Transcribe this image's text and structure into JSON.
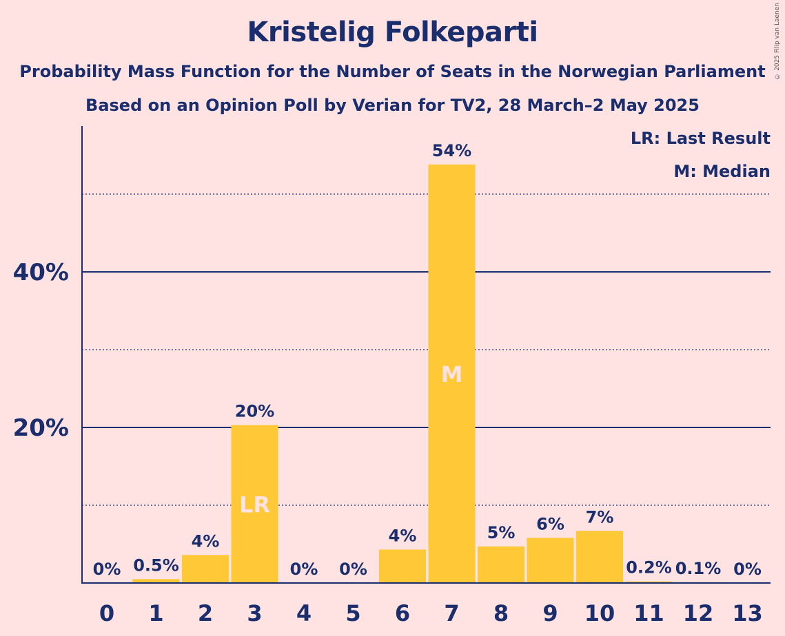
{
  "title": "Kristelig Folkeparti",
  "subtitle1": "Probability Mass Function for the Number of Seats in the Norwegian Parliament",
  "subtitle2": "Based on an Opinion Poll by Verian for TV2, 28 March–2 May 2025",
  "copyright": "© 2025 Filip van Laenen",
  "legend": {
    "last_result": "LR: Last Result",
    "median": "M: Median"
  },
  "colors": {
    "background": "#FFE3E3",
    "bar": "#FFC837",
    "axis": "#1A2E6E",
    "marker_text": "#FFE3E3"
  },
  "chart_data": {
    "type": "bar",
    "categories": [
      "0",
      "1",
      "2",
      "3",
      "4",
      "5",
      "6",
      "7",
      "8",
      "9",
      "10",
      "11",
      "12",
      "13"
    ],
    "values": [
      0,
      0.5,
      3.6,
      20.3,
      0,
      0,
      4.3,
      53.8,
      4.7,
      5.8,
      6.7,
      0.2,
      0.1,
      0
    ],
    "labels": [
      "0%",
      "0.5%",
      "4%",
      "20%",
      "0%",
      "0%",
      "4%",
      "54%",
      "5%",
      "6%",
      "7%",
      "0.2%",
      "0.1%",
      "0%"
    ],
    "markers": {
      "3": "LR",
      "7": "M"
    },
    "ylim": [
      0,
      58
    ],
    "yticks_major": [
      20,
      40
    ],
    "ytick_labels": [
      "20%",
      "40%"
    ],
    "yticks_minor": [
      10,
      30,
      50
    ],
    "grid": true,
    "legend_position": "top-right"
  }
}
